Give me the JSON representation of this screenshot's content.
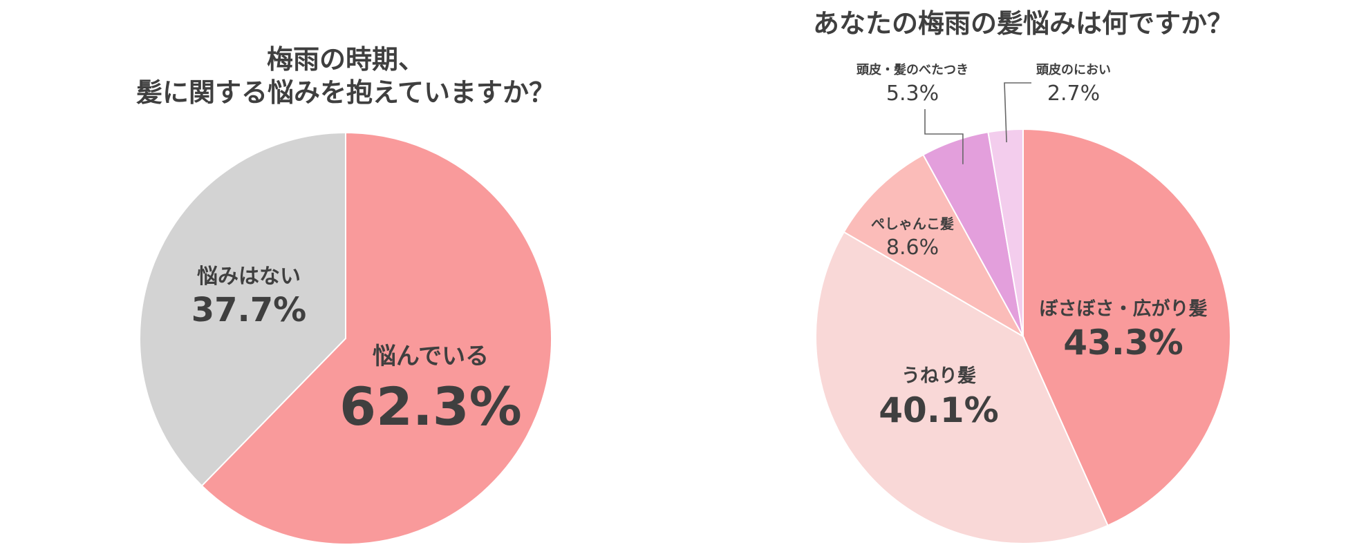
{
  "chart_data": [
    {
      "type": "pie",
      "title_lines": [
        "梅雨の時期、",
        "髪に関する悩みを抱えていますか？"
      ],
      "slices": [
        {
          "label": "悩んでいる",
          "value": 62.3,
          "display": "62.3%",
          "color": "#f99a9b"
        },
        {
          "label": "悩みはない",
          "value": 37.7,
          "display": "37.7%",
          "color": "#d3d3d3"
        }
      ]
    },
    {
      "type": "pie",
      "title": "あなたの梅雨の髪悩みは何ですか？",
      "slices": [
        {
          "label": "ぼさぼさ・広がり髪",
          "value": 43.3,
          "display": "43.3%",
          "color": "#f99a9b"
        },
        {
          "label": "うねり髪",
          "value": 40.1,
          "display": "40.1%",
          "color": "#f9d8d7"
        },
        {
          "label": "ぺしゃんこ髪",
          "value": 8.6,
          "display": "8.6%",
          "color": "#fbbcb9"
        },
        {
          "label": "頭皮・髪のべたつき",
          "value": 5.3,
          "display": "5.3%",
          "color": "#e39fdc"
        },
        {
          "label": "頭皮のにおい",
          "value": 2.7,
          "display": "2.7%",
          "color": "#f3cded"
        }
      ]
    }
  ]
}
